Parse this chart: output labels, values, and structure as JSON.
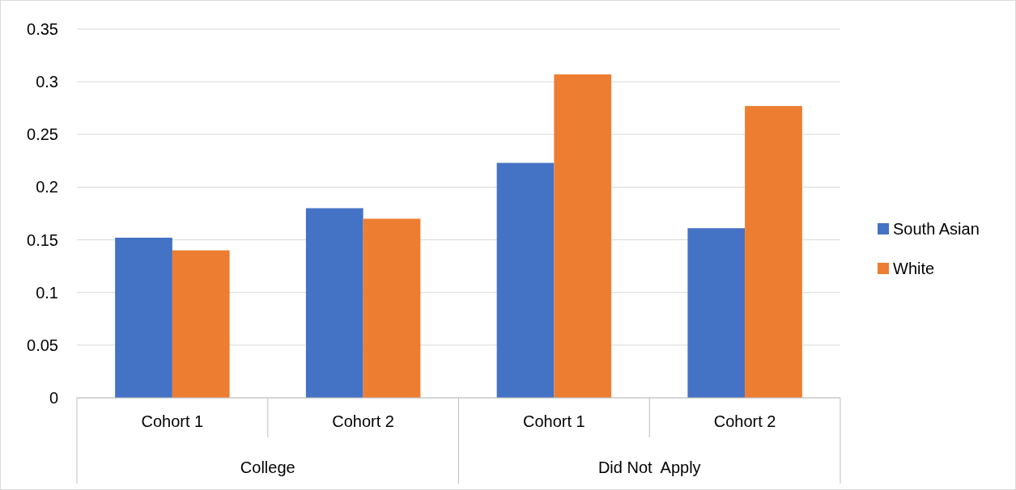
{
  "chart_data": {
    "type": "bar",
    "categories": [
      "Cohort 1",
      "Cohort 2",
      "Cohort 1",
      "Cohort 2"
    ],
    "series": [
      {
        "name": "South Asian",
        "color": "#4472c4",
        "values": [
          0.152,
          0.18,
          0.223,
          0.161
        ]
      },
      {
        "name": "White",
        "color": "#ed7d31",
        "values": [
          0.14,
          0.17,
          0.307,
          0.277
        ]
      }
    ],
    "annotations": [
      "College",
      "Did Not  Apply"
    ],
    "ylim": [
      0,
      0.35
    ],
    "yticks": [
      0,
      0.05,
      0.1,
      0.15,
      0.2,
      0.25,
      0.3,
      0.35
    ],
    "grid": "y",
    "legend": "right"
  }
}
